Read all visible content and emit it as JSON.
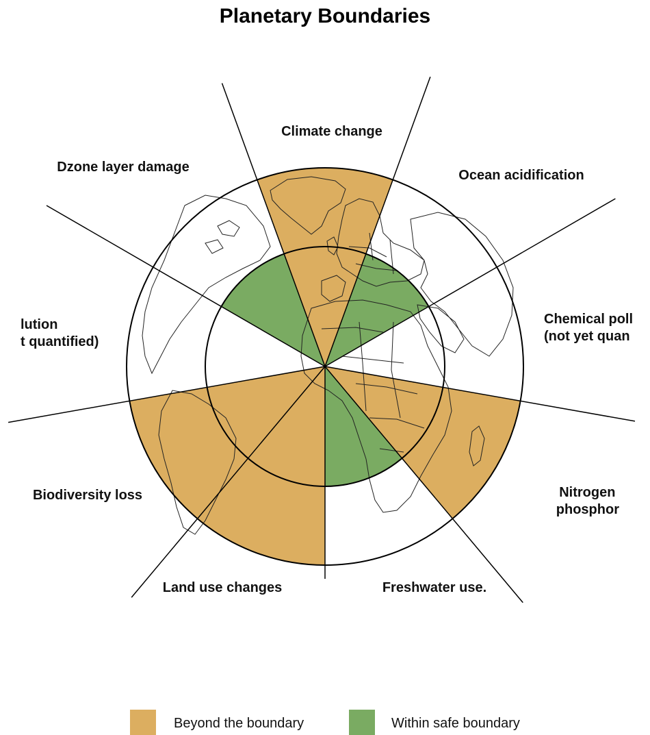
{
  "title": "Planetary Boundaries",
  "colors": {
    "beyond": "#dcae60",
    "within": "#7aab62",
    "outline": "#000000",
    "background": "#ffffff"
  },
  "segments": [
    {
      "label_lines": [
        "Climate change"
      ],
      "status": "beyond",
      "level": 1.0
    },
    {
      "label_lines": [
        "Ocean acidification"
      ],
      "status": "within",
      "level": 0.55
    },
    {
      "label_lines": [
        "Chemical poll",
        "(not yet quan"
      ],
      "status": "not-quantified",
      "level": 0
    },
    {
      "label_lines": [
        "Nitrogen",
        "phosphor"
      ],
      "status": "beyond",
      "level": 1.0
    },
    {
      "label_lines": [
        "Freshwater use."
      ],
      "status": "within",
      "level": 0.6
    },
    {
      "label_lines": [
        "Land use changes"
      ],
      "status": "beyond",
      "level": 1.0
    },
    {
      "label_lines": [
        "Biodiversity loss"
      ],
      "status": "beyond",
      "level": 1.0
    },
    {
      "label_lines": [
        "lution",
        "t quantified)"
      ],
      "status": "not-quantified",
      "level": 0
    },
    {
      "label_lines": [
        "Dzone layer damage"
      ],
      "status": "within",
      "level": 0.55
    }
  ],
  "legend": [
    {
      "label": "Beyond the boundary",
      "color_key": "beyond"
    },
    {
      "label": "Within safe boundary",
      "color_key": "within"
    }
  ]
}
